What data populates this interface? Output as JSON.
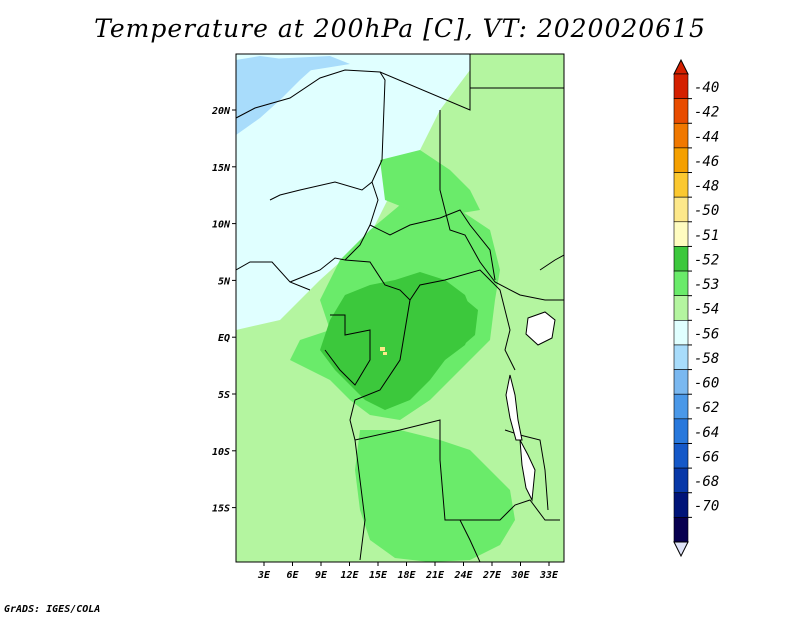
{
  "title": "Temperature at 200hPa [C], VT: 2020020615",
  "credit": "GrADS: IGES/COLA",
  "lat_labels": [
    "20N",
    "15N",
    "10N",
    "5N",
    "EQ",
    "5S",
    "10S",
    "15S"
  ],
  "lon_labels": [
    "3E",
    "6E",
    "9E",
    "12E",
    "15E",
    "18E",
    "21E",
    "24E",
    "27E",
    "30E",
    "33E"
  ],
  "colorbar": {
    "labels": [
      "-40",
      "-42",
      "-44",
      "-46",
      "-48",
      "-50",
      "-51",
      "-52",
      "-53",
      "-54",
      "-56",
      "-58",
      "-60",
      "-62",
      "-64",
      "-66",
      "-68",
      "-70"
    ],
    "colors": [
      "#d42000",
      "#e84c00",
      "#f07800",
      "#f5a000",
      "#fbc830",
      "#fde88a",
      "#fffcc0",
      "#3cc83c",
      "#6aeb6a",
      "#b4f5a0",
      "#e0ffff",
      "#a8dcfb",
      "#7ab8f0",
      "#4a98e8",
      "#2878dc",
      "#1458c8",
      "#0838a8",
      "#001478",
      "#080050"
    ],
    "top_color": "#d42000",
    "bottom_color": "#e0e4f8"
  },
  "colors": {
    "land_base": "#b4f5a0",
    "level_52": "#3cc83c",
    "level_53": "#6aeb6a",
    "level_54": "#e0ffff",
    "level_56": "#a8dcfb",
    "level_51": "#fde88a"
  }
}
